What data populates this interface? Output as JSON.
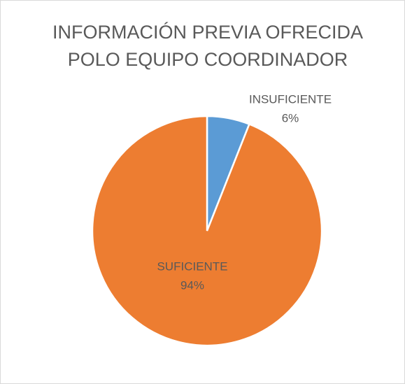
{
  "chart_data": {
    "type": "pie",
    "title": [
      "INFORMACIÓN PREVIA OFRECIDA",
      "POLO EQUIPO COORDINADOR"
    ],
    "categories": [
      "INSUFICIENTE",
      "SUFICIENTE"
    ],
    "values": [
      6,
      94
    ],
    "value_labels": [
      "6%",
      "94%"
    ],
    "colors": [
      "#5b9bd5",
      "#ed7d31"
    ]
  }
}
